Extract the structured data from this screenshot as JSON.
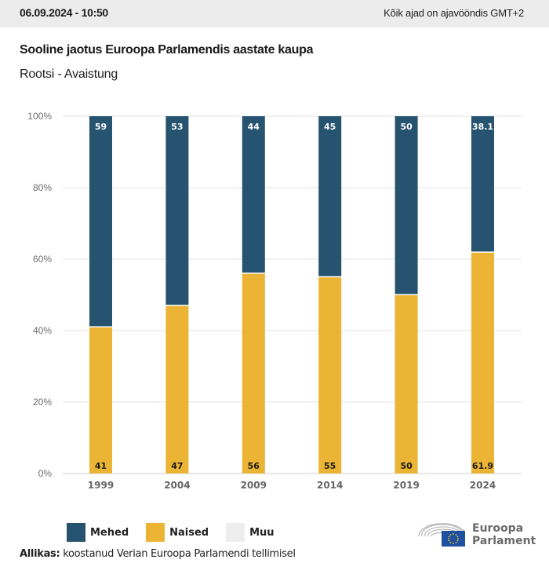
{
  "header": {
    "timestamp": "06.09.2024 - 10:50",
    "timezone_note": "Kõik ajad on ajavööndis GMT+2"
  },
  "colors": {
    "mehed": "#26536f",
    "naised": "#ebb434",
    "muu": "#eeeeee",
    "grid": "#e3e3e3"
  },
  "legend": [
    {
      "label": "Mehed",
      "color_key": "mehed"
    },
    {
      "label": "Naised",
      "color_key": "naised"
    },
    {
      "label": "Muu",
      "color_key": "muu"
    }
  ],
  "source": {
    "prefix": "Allikas:",
    "text": " koostanud Verian Euroopa Parlamendi tellimisel"
  },
  "logo": {
    "line1": "Euroopa",
    "line2": "Parlament"
  },
  "chart_data": {
    "type": "bar",
    "stacked": true,
    "title": "Sooline jaotus Euroopa Parlamendis aastate kaupa",
    "subtitle": "Rootsi - Avaistung",
    "xlabel": "",
    "ylabel": "",
    "categories": [
      "1999",
      "2004",
      "2009",
      "2014",
      "2019",
      "2024"
    ],
    "series": [
      {
        "name": "Naised",
        "values": [
          41,
          47,
          56,
          55,
          50,
          61.9
        ]
      },
      {
        "name": "Mehed",
        "values": [
          59,
          53,
          44,
          45,
          50,
          38.1
        ]
      },
      {
        "name": "Muu",
        "values": [
          0,
          0,
          0,
          0,
          0,
          0
        ]
      }
    ],
    "ylim": [
      0,
      100
    ],
    "yticks": [
      "0%",
      "20%",
      "40%",
      "60%",
      "80%",
      "100%"
    ],
    "grid": true,
    "legend_position": "bottom-left"
  }
}
